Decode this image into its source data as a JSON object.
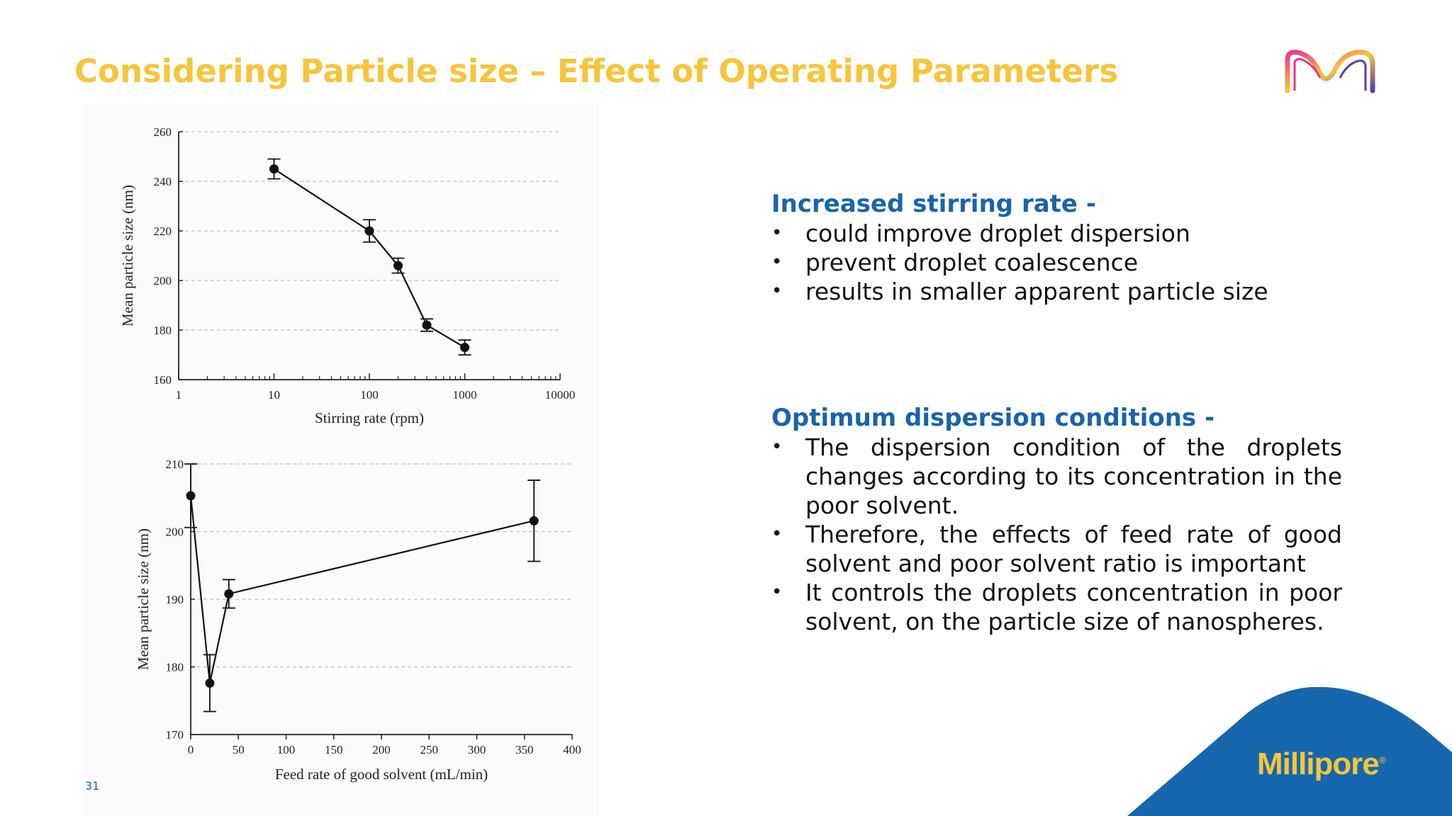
{
  "slide": {
    "title": "Considering Particle size – Effect of Operating Parameters",
    "page_number": "31",
    "brand": "Millipore",
    "brand_mark": "®"
  },
  "text_blocks": [
    {
      "heading": "Increased stirring rate -",
      "bullets": [
        "could improve droplet dispersion",
        "prevent droplet coalescence",
        "results in smaller apparent particle size"
      ]
    },
    {
      "heading": "Optimum dispersion conditions -",
      "bullets": [
        "The dispersion condition of the droplets changes according to its concentration in the poor solvent.",
        "Therefore, the effects of feed rate of good solvent and poor solvent ratio is important",
        " It controls the droplets concentration in poor solvent, on the particle size of nanospheres."
      ]
    }
  ],
  "colors": {
    "title": "#F6C53B",
    "heading": "#1A64A8",
    "brand_blue": "#1767AE",
    "grid": "#b0b0c0"
  },
  "chart_data": [
    {
      "type": "scatter",
      "xscale": "log",
      "x": [
        10,
        100,
        200,
        400,
        1000
      ],
      "y": [
        245,
        220,
        206,
        182,
        173
      ],
      "yerr": [
        4,
        4.5,
        3,
        2.5,
        3
      ],
      "xlabel": "Stirring rate (rpm)",
      "ylabel": "Mean particle size (nm)",
      "xlim": [
        1,
        10000
      ],
      "ylim": [
        160,
        260
      ],
      "xticks": [
        "1",
        "10",
        "100",
        "1000",
        "10000"
      ],
      "yticks": [
        "160",
        "180",
        "200",
        "220",
        "240",
        "260"
      ],
      "grid": "horizontal dashed"
    },
    {
      "type": "scatter",
      "x": [
        0,
        20,
        40,
        360
      ],
      "y": [
        205.3,
        177.6,
        190.8,
        201.6
      ],
      "yerr": [
        4.7,
        4.2,
        2.1,
        6
      ],
      "xlabel": "Feed rate of good solvent (mL/min)",
      "ylabel": "Mean particle size (nm)",
      "xlim": [
        0,
        400
      ],
      "ylim": [
        170,
        210
      ],
      "xticks": [
        "0",
        "50",
        "100",
        "150",
        "200",
        "250",
        "300",
        "350",
        "400"
      ],
      "yticks": [
        "170",
        "180",
        "190",
        "200",
        "210"
      ],
      "grid": "horizontal dashed"
    }
  ]
}
